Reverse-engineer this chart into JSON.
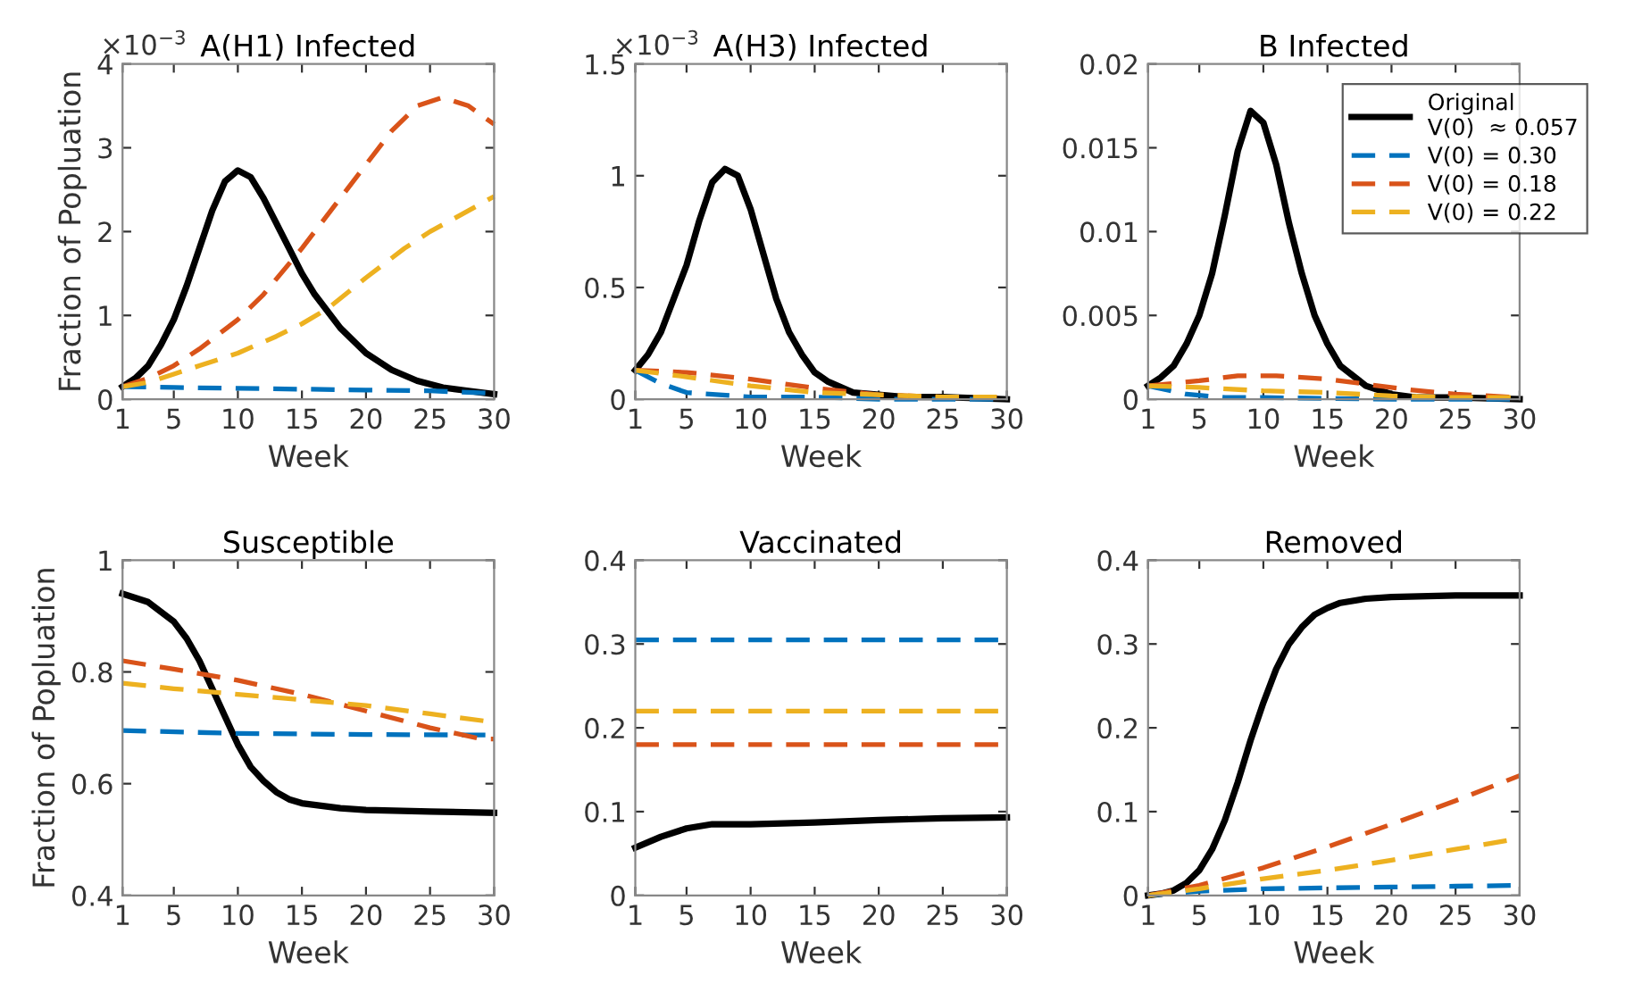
{
  "chart_data": [
    {
      "type": "line",
      "title": "A(H1) Infected",
      "xlabel": "Week",
      "ylabel": "Fraction of Popluation",
      "annotations": [
        "×10$^{−3}$"
      ],
      "xlim": [
        1,
        30
      ],
      "xticks": [
        1,
        5,
        10,
        15,
        20,
        25,
        30
      ],
      "ylim": [
        0,
        4
      ],
      "yticks": [
        0,
        1,
        2,
        3,
        4
      ],
      "grid": false,
      "legend": false,
      "series": [
        {
          "color": "#000000",
          "line_style": "solid",
          "x": [
            1,
            2,
            3,
            4,
            5,
            6,
            7,
            8,
            9,
            10,
            11,
            12,
            13,
            14,
            15,
            16,
            18,
            20,
            22,
            24,
            26,
            28,
            30
          ],
          "values": [
            0.15,
            0.25,
            0.4,
            0.65,
            0.95,
            1.35,
            1.8,
            2.25,
            2.6,
            2.73,
            2.65,
            2.4,
            2.1,
            1.8,
            1.5,
            1.25,
            0.85,
            0.55,
            0.35,
            0.22,
            0.14,
            0.1,
            0.06
          ]
        },
        {
          "color": "#0072bd",
          "line_style": "dashed",
          "x": [
            1,
            5,
            10,
            15,
            20,
            25,
            30
          ],
          "values": [
            0.15,
            0.14,
            0.13,
            0.12,
            0.11,
            0.1,
            0.07
          ]
        },
        {
          "color": "#d95319",
          "line_style": "dashed",
          "x": [
            1,
            3,
            5,
            7,
            10,
            12,
            15,
            18,
            20,
            22,
            24,
            26,
            28,
            30
          ],
          "values": [
            0.15,
            0.25,
            0.4,
            0.6,
            0.95,
            1.25,
            1.8,
            2.4,
            2.8,
            3.2,
            3.5,
            3.6,
            3.5,
            3.28
          ]
        },
        {
          "color": "#edb120",
          "line_style": "dashed",
          "x": [
            1,
            3,
            5,
            7,
            10,
            13,
            15,
            17,
            20,
            23,
            25,
            28,
            30
          ],
          "values": [
            0.15,
            0.2,
            0.3,
            0.4,
            0.55,
            0.75,
            0.9,
            1.08,
            1.45,
            1.8,
            2.0,
            2.25,
            2.42
          ]
        }
      ]
    },
    {
      "type": "line",
      "title": "A(H3) Infected",
      "xlabel": "Week",
      "annotations": [
        "×10$^{−3}$"
      ],
      "xlim": [
        1,
        30
      ],
      "xticks": [
        1,
        5,
        10,
        15,
        20,
        25,
        30
      ],
      "ylim": [
        0,
        1.5
      ],
      "yticks": [
        0,
        0.5,
        1,
        1.5
      ],
      "grid": false,
      "legend": false,
      "series": [
        {
          "color": "#000000",
          "line_style": "solid",
          "x": [
            1,
            2,
            3,
            4,
            5,
            6,
            7,
            8,
            9,
            10,
            11,
            12,
            13,
            14,
            15,
            16,
            18,
            20,
            22,
            25,
            30
          ],
          "values": [
            0.13,
            0.2,
            0.3,
            0.45,
            0.6,
            0.8,
            0.97,
            1.03,
            1.0,
            0.85,
            0.65,
            0.45,
            0.3,
            0.2,
            0.12,
            0.08,
            0.03,
            0.02,
            0.01,
            0.01,
            0
          ]
        },
        {
          "color": "#0072bd",
          "line_style": "dashed",
          "x": [
            1,
            3,
            5,
            10,
            15,
            20,
            30
          ],
          "values": [
            0.13,
            0.07,
            0.03,
            0.01,
            0.01,
            0,
            0
          ]
        },
        {
          "color": "#d95319",
          "line_style": "dashed",
          "x": [
            1,
            5,
            10,
            15,
            20,
            25,
            30
          ],
          "values": [
            0.13,
            0.12,
            0.09,
            0.05,
            0.02,
            0.01,
            0.01
          ]
        },
        {
          "color": "#edb120",
          "line_style": "dashed",
          "x": [
            1,
            5,
            10,
            15,
            20,
            25,
            30
          ],
          "values": [
            0.13,
            0.1,
            0.06,
            0.03,
            0.02,
            0.01,
            0.01
          ]
        }
      ]
    },
    {
      "type": "line",
      "title": "B Infected",
      "xlabel": "Week",
      "xlim": [
        1,
        30
      ],
      "xticks": [
        1,
        5,
        10,
        15,
        20,
        25,
        30
      ],
      "ylim": [
        0,
        0.02
      ],
      "yticks": [
        0,
        0.005,
        0.01,
        0.015,
        0.02
      ],
      "grid": false,
      "legend": "top right",
      "series": [
        {
          "name": "Original\nV(0)  ≈ 0.057",
          "color": "#000000",
          "line_style": "solid",
          "x": [
            1,
            2,
            3,
            4,
            5,
            6,
            7,
            8,
            9,
            10,
            11,
            12,
            13,
            14,
            15,
            16,
            18,
            20,
            22,
            25,
            30
          ],
          "values": [
            0.0008,
            0.0013,
            0.002,
            0.0033,
            0.005,
            0.0075,
            0.011,
            0.0148,
            0.0172,
            0.0165,
            0.014,
            0.0105,
            0.0075,
            0.005,
            0.0033,
            0.002,
            0.0008,
            0.0003,
            0.0001,
            0.0001,
            0
          ]
        },
        {
          "name": "V(0) = 0.30",
          "color": "#0072bd",
          "line_style": "dashed",
          "x": [
            1,
            4,
            7,
            10,
            20,
            30
          ],
          "values": [
            0.0008,
            0.0003,
            0.0001,
            0.0001,
            0,
            0
          ]
        },
        {
          "name": "V(0) = 0.18",
          "color": "#d95319",
          "line_style": "dashed",
          "x": [
            1,
            5,
            8,
            11,
            15,
            18,
            21,
            25,
            30
          ],
          "values": [
            0.0008,
            0.0011,
            0.0014,
            0.0014,
            0.0012,
            0.0009,
            0.0006,
            0.0003,
            0.0001
          ]
        },
        {
          "name": "V(0) = 0.22",
          "color": "#edb120",
          "line_style": "dashed",
          "x": [
            1,
            5,
            10,
            15,
            20,
            25,
            30
          ],
          "values": [
            0.0008,
            0.0007,
            0.0005,
            0.0004,
            0.0002,
            0.0001,
            0.0001
          ]
        }
      ]
    },
    {
      "type": "line",
      "title": "Susceptible",
      "xlabel": "Week",
      "ylabel": "Fraction of Popluation",
      "xlim": [
        1,
        30
      ],
      "xticks": [
        1,
        5,
        10,
        15,
        20,
        25,
        30
      ],
      "ylim": [
        0.4,
        1
      ],
      "yticks": [
        0.4,
        0.6,
        0.8,
        1
      ],
      "grid": false,
      "legend": false,
      "series": [
        {
          "color": "#000000",
          "line_style": "solid",
          "x": [
            1,
            3,
            5,
            6,
            7,
            8,
            9,
            10,
            11,
            12,
            13,
            14,
            15,
            18,
            20,
            25,
            30
          ],
          "values": [
            0.94,
            0.925,
            0.89,
            0.86,
            0.82,
            0.77,
            0.72,
            0.67,
            0.63,
            0.605,
            0.585,
            0.572,
            0.565,
            0.556,
            0.553,
            0.55,
            0.548
          ]
        },
        {
          "color": "#0072bd",
          "line_style": "dashed",
          "x": [
            1,
            10,
            20,
            30
          ],
          "values": [
            0.695,
            0.69,
            0.688,
            0.687
          ]
        },
        {
          "color": "#d95319",
          "line_style": "dashed",
          "x": [
            1,
            5,
            10,
            15,
            20,
            25,
            29,
            30
          ],
          "values": [
            0.82,
            0.805,
            0.785,
            0.76,
            0.73,
            0.7,
            0.68,
            0.68
          ]
        },
        {
          "color": "#edb120",
          "line_style": "dashed",
          "x": [
            1,
            5,
            10,
            15,
            20,
            25,
            30
          ],
          "values": [
            0.78,
            0.77,
            0.76,
            0.75,
            0.74,
            0.725,
            0.71
          ]
        }
      ]
    },
    {
      "type": "line",
      "title": "Vaccinated",
      "xlabel": "Week",
      "xlim": [
        1,
        30
      ],
      "xticks": [
        1,
        5,
        10,
        15,
        20,
        25,
        30
      ],
      "ylim": [
        0,
        0.4
      ],
      "yticks": [
        0,
        0.1,
        0.2,
        0.3,
        0.4
      ],
      "grid": false,
      "legend": false,
      "series": [
        {
          "color": "#000000",
          "line_style": "solid",
          "x": [
            1,
            3,
            5,
            7,
            10,
            15,
            20,
            25,
            30
          ],
          "values": [
            0.057,
            0.07,
            0.08,
            0.085,
            0.085,
            0.087,
            0.09,
            0.092,
            0.093
          ]
        },
        {
          "color": "#0072bd",
          "line_style": "dashed",
          "x": [
            1,
            30
          ],
          "values": [
            0.305,
            0.305
          ]
        },
        {
          "color": "#d95319",
          "line_style": "dashed",
          "x": [
            1,
            30
          ],
          "values": [
            0.18,
            0.18
          ]
        },
        {
          "color": "#edb120",
          "line_style": "dashed",
          "x": [
            1,
            30
          ],
          "values": [
            0.22,
            0.22
          ]
        }
      ]
    },
    {
      "type": "line",
      "title": "Removed",
      "xlabel": "Week",
      "xlim": [
        1,
        30
      ],
      "xticks": [
        1,
        5,
        10,
        15,
        20,
        25,
        30
      ],
      "ylim": [
        0,
        0.4
      ],
      "yticks": [
        0,
        0.1,
        0.2,
        0.3,
        0.4
      ],
      "grid": false,
      "legend": false,
      "series": [
        {
          "color": "#000000",
          "line_style": "solid",
          "x": [
            1,
            2,
            3,
            4,
            5,
            6,
            7,
            8,
            9,
            10,
            11,
            12,
            13,
            14,
            15,
            16,
            18,
            20,
            25,
            30
          ],
          "values": [
            0,
            0.002,
            0.006,
            0.015,
            0.03,
            0.055,
            0.09,
            0.135,
            0.185,
            0.23,
            0.27,
            0.3,
            0.32,
            0.335,
            0.343,
            0.349,
            0.354,
            0.356,
            0.358,
            0.358
          ]
        },
        {
          "color": "#0072bd",
          "line_style": "dashed",
          "x": [
            1,
            5,
            10,
            15,
            20,
            25,
            30
          ],
          "values": [
            0,
            0.005,
            0.008,
            0.009,
            0.01,
            0.011,
            0.012
          ]
        },
        {
          "color": "#d95319",
          "line_style": "dashed",
          "x": [
            1,
            5,
            10,
            15,
            20,
            25,
            30
          ],
          "values": [
            0,
            0.012,
            0.033,
            0.058,
            0.085,
            0.113,
            0.143
          ]
        },
        {
          "color": "#edb120",
          "line_style": "dashed",
          "x": [
            1,
            5,
            10,
            15,
            20,
            25,
            30
          ],
          "values": [
            0,
            0.008,
            0.02,
            0.03,
            0.042,
            0.055,
            0.068
          ]
        }
      ]
    }
  ]
}
